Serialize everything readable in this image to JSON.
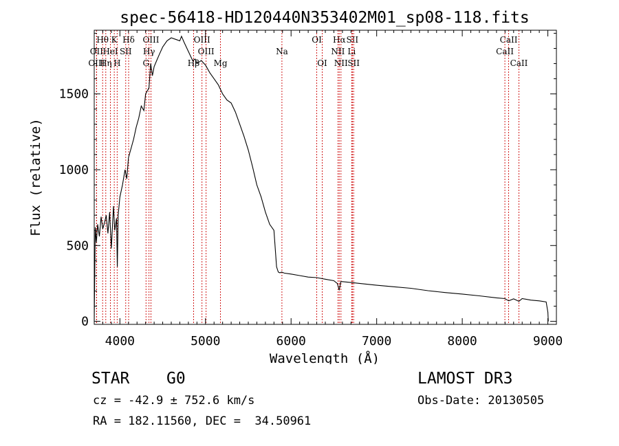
{
  "chart_data": {
    "type": "line",
    "title": "spec-56418-HD120440N353402M01_sp08-118.fits",
    "xlabel": "Wavelength (Å)",
    "ylabel": "Flux (relative)",
    "xlim": [
      3700,
      9100
    ],
    "ylim": [
      -20,
      1920
    ],
    "xticks": [
      4000,
      5000,
      6000,
      7000,
      8000,
      9000
    ],
    "yticks": [
      0,
      500,
      1000,
      1500
    ],
    "grid": false,
    "series": [
      {
        "name": "flux",
        "x": [
          3700,
          3712,
          3725,
          3740,
          3760,
          3780,
          3800,
          3820,
          3840,
          3860,
          3880,
          3900,
          3925,
          3940,
          3960,
          3970,
          3980,
          4000,
          4030,
          4060,
          4080,
          4100,
          4130,
          4160,
          4190,
          4220,
          4250,
          4280,
          4300,
          4320,
          4340,
          4360,
          4380,
          4400,
          4430,
          4460,
          4500,
          4550,
          4600,
          4650,
          4700,
          4720,
          4750,
          4800,
          4850,
          4880,
          4900,
          4950,
          5000,
          5050,
          5100,
          5150,
          5200,
          5250,
          5300,
          5350,
          5400,
          5450,
          5500,
          5550,
          5600,
          5650,
          5700,
          5750,
          5800,
          5830,
          5850,
          5870,
          5890,
          5920,
          6000,
          6100,
          6200,
          6300,
          6400,
          6500,
          6540,
          6563,
          6580,
          6600,
          6700,
          6800,
          7000,
          7200,
          7400,
          7600,
          7800,
          8000,
          8200,
          8400,
          8498,
          8542,
          8600,
          8662,
          8700,
          8800,
          8900,
          8980,
          9000,
          9005
        ],
        "y": [
          0,
          620,
          520,
          640,
          560,
          690,
          610,
          650,
          700,
          580,
          720,
          480,
          760,
          600,
          680,
          360,
          700,
          820,
          900,
          1000,
          940,
          1080,
          1140,
          1200,
          1280,
          1340,
          1420,
          1390,
          1500,
          1520,
          1540,
          1700,
          1620,
          1680,
          1720,
          1760,
          1810,
          1850,
          1870,
          1860,
          1850,
          1880,
          1840,
          1780,
          1720,
          1730,
          1700,
          1720,
          1690,
          1640,
          1600,
          1560,
          1500,
          1460,
          1440,
          1380,
          1300,
          1220,
          1130,
          1020,
          900,
          820,
          720,
          640,
          600,
          360,
          325,
          320,
          325,
          318,
          312,
          302,
          292,
          288,
          278,
          268,
          250,
          205,
          262,
          262,
          256,
          250,
          238,
          228,
          218,
          202,
          190,
          180,
          168,
          155,
          150,
          135,
          148,
          132,
          150,
          140,
          135,
          128,
          60,
          0
        ]
      }
    ],
    "line_markers": [
      {
        "label": "Hθ",
        "wavelength": 3798,
        "row": 0
      },
      {
        "label": "OII",
        "wavelength": 3727,
        "row": 1
      },
      {
        "label": "OIII",
        "wavelength": 3727,
        "row": 2
      },
      {
        "label": "K",
        "wavelength": 3934,
        "row": 0
      },
      {
        "label": "HeI",
        "wavelength": 3889,
        "row": 1
      },
      {
        "label": "Hη",
        "wavelength": 3835,
        "row": 2
      },
      {
        "label": "H",
        "wavelength": 3968,
        "row": 2
      },
      {
        "label": "SII",
        "wavelength": 4068,
        "row": 1
      },
      {
        "label": "Hδ",
        "wavelength": 4102,
        "row": 0
      },
      {
        "label": "OIII",
        "wavelength": 4363,
        "row": 0
      },
      {
        "label": "Hγ",
        "wavelength": 4340,
        "row": 1
      },
      {
        "label": "G",
        "wavelength": 4305,
        "row": 2
      },
      {
        "label": "OIII",
        "wavelength": 4959,
        "row": 0
      },
      {
        "label": "OIII",
        "wavelength": 5007,
        "row": 1
      },
      {
        "label": "Hβ",
        "wavelength": 4861,
        "row": 2
      },
      {
        "label": "Mg",
        "wavelength": 5175,
        "row": 2
      },
      {
        "label": "Na",
        "wavelength": 5893,
        "row": 1
      },
      {
        "label": "OI",
        "wavelength": 6300,
        "row": 0
      },
      {
        "label": "OI",
        "wavelength": 6364,
        "row": 2
      },
      {
        "label": "Hα",
        "wavelength": 6563,
        "row": 0
      },
      {
        "label": "SII",
        "wavelength": 6716,
        "row": 0
      },
      {
        "label": "NII",
        "wavelength": 6548,
        "row": 1
      },
      {
        "label": "Li",
        "wavelength": 6708,
        "row": 1
      },
      {
        "label": "NII",
        "wavelength": 6583,
        "row": 2
      },
      {
        "label": "SII",
        "wavelength": 6731,
        "row": 2
      },
      {
        "label": "CaII",
        "wavelength": 8542,
        "row": 0
      },
      {
        "label": "CaII",
        "wavelength": 8498,
        "row": 1
      },
      {
        "label": "CaII",
        "wavelength": 8662,
        "row": 2
      }
    ]
  },
  "info": {
    "class_label": "STAR",
    "subclass": "G0",
    "survey": "LAMOST DR3",
    "cz_text": "cz = -42.9 ± 752.6 km/s",
    "obs_date_text": "Obs-Date: 20130505",
    "coords_text": "RA = 182.11560, DEC =  34.50961"
  },
  "colors": {
    "marker_line": "#cc0000",
    "spectrum": "#000000",
    "text": "#000000",
    "background": "#ffffff"
  }
}
